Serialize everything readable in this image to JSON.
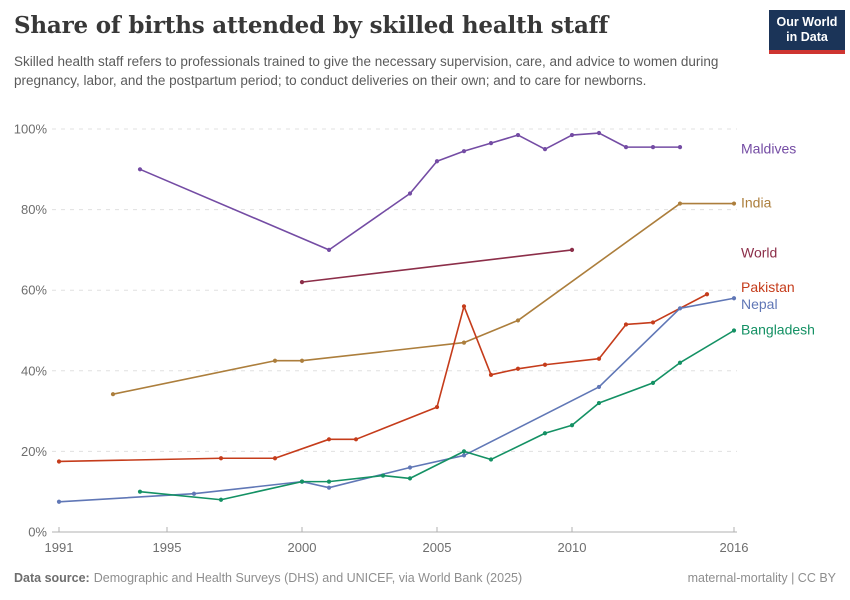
{
  "header": {
    "title": "Share of births attended by skilled health staff",
    "subtitle": "Skilled health staff refers to professionals trained to give the necessary supervision, care, and advice to women during pregnancy, labor, and the postpartum period; to conduct deliveries on their own; and to care for newborns.",
    "logo_line1": "Our World",
    "logo_line2": "in Data"
  },
  "footer": {
    "source_label": "Data source:",
    "source_text": "Demographic and Health Surveys (DHS) and UNICEF, via World Bank (2025)",
    "license_text": "maternal-mortality | CC BY"
  },
  "style": {
    "grid_color": "#e0e0e0",
    "axis_color": "#b0b0b0",
    "tick_text_color": "#6e6e6e",
    "logo_bg": "#1B3458",
    "logo_bar": "#CE3531"
  },
  "chart_data": {
    "type": "line",
    "title": "Share of births attended by skilled health staff",
    "xlabel": "",
    "ylabel": "",
    "xlim": [
      1990.5,
      2016.2
    ],
    "ylim": [
      0,
      100
    ],
    "x_ticks": [
      1991,
      1995,
      2000,
      2005,
      2010,
      2016
    ],
    "y_ticks": [
      0,
      20,
      40,
      60,
      80,
      100
    ],
    "y_tick_suffix": "%",
    "grid": "horizontal-dashed",
    "legend_position": "right-edge-labels",
    "series": [
      {
        "name": "Maldives",
        "color": "#744CA4",
        "label_y": 95.0,
        "points": [
          [
            1994,
            90
          ],
          [
            2001,
            70
          ],
          [
            2004,
            84
          ],
          [
            2005,
            92
          ],
          [
            2006,
            94.5
          ],
          [
            2007,
            96.5
          ],
          [
            2008,
            98.5
          ],
          [
            2009,
            95
          ],
          [
            2010,
            98.5
          ],
          [
            2011,
            99
          ],
          [
            2012,
            95.5
          ],
          [
            2013,
            95.5
          ],
          [
            2014,
            95.5
          ]
        ]
      },
      {
        "name": "India",
        "color": "#AC7E3C",
        "label_y": 81.6,
        "points": [
          [
            1993,
            34.2
          ],
          [
            1999,
            42.5
          ],
          [
            2000,
            42.5
          ],
          [
            2006,
            47
          ],
          [
            2008,
            52.5
          ],
          [
            2014,
            81.5
          ],
          [
            2016,
            81.5
          ]
        ]
      },
      {
        "name": "World",
        "color": "#8C2E49",
        "label_y": 69.2,
        "points": [
          [
            2000,
            62
          ],
          [
            2010,
            70
          ]
        ]
      },
      {
        "name": "Pakistan",
        "color": "#C53C1B",
        "label_y": 60.7,
        "points": [
          [
            1991,
            17.5
          ],
          [
            1997,
            18.3
          ],
          [
            1999,
            18.3
          ],
          [
            2001,
            23
          ],
          [
            2002,
            23
          ],
          [
            2005,
            31
          ],
          [
            2006,
            56
          ],
          [
            2007,
            39
          ],
          [
            2008,
            40.5
          ],
          [
            2009,
            41.5
          ],
          [
            2011,
            43
          ],
          [
            2012,
            51.5
          ],
          [
            2013,
            52
          ],
          [
            2015,
            59
          ]
        ]
      },
      {
        "name": "Nepal",
        "color": "#6077B6",
        "label_y": 56.5,
        "points": [
          [
            1991,
            7.5
          ],
          [
            1996,
            9.5
          ],
          [
            2000,
            12.5
          ],
          [
            2001,
            11
          ],
          [
            2004,
            16
          ],
          [
            2006,
            19
          ],
          [
            2011,
            36
          ],
          [
            2014,
            55.5
          ],
          [
            2016,
            58
          ]
        ]
      },
      {
        "name": "Bangladesh",
        "color": "#149164",
        "label_y": 50.1,
        "points": [
          [
            1994,
            10
          ],
          [
            1997,
            8
          ],
          [
            2000,
            12.5
          ],
          [
            2001,
            12.5
          ],
          [
            2003,
            14
          ],
          [
            2004,
            13.3
          ],
          [
            2006,
            20
          ],
          [
            2007,
            18
          ],
          [
            2009,
            24.5
          ],
          [
            2010,
            26.5
          ],
          [
            2011,
            32
          ],
          [
            2013,
            37
          ],
          [
            2014,
            42
          ],
          [
            2016,
            50
          ]
        ]
      }
    ]
  }
}
